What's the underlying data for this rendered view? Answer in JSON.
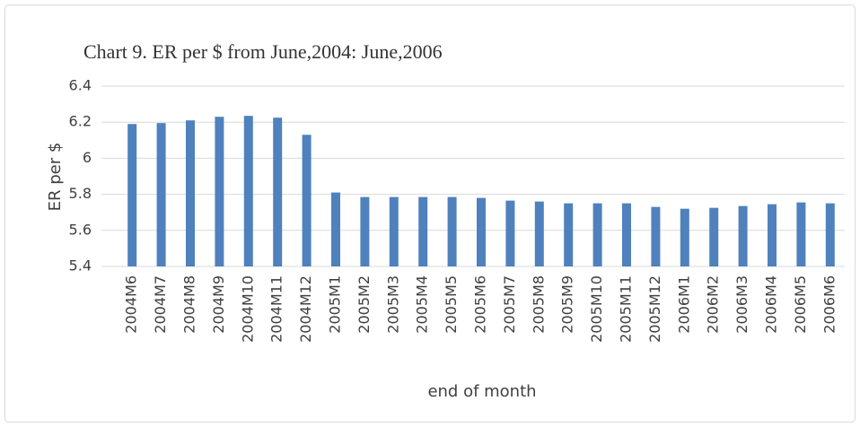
{
  "chart_data": {
    "type": "bar",
    "title": "Chart 9. ER per $ from June,2004: June,2006",
    "y_label": "ER per $",
    "x_label": "end of month",
    "categories": [
      "2004M6",
      "2004M7",
      "2004M8",
      "2004M9",
      "2004M10",
      "2004M11",
      "2004M12",
      "2005M1",
      "2005M2",
      "2005M3",
      "2005M4",
      "2005M5",
      "2005M6",
      "2005M7",
      "2005M8",
      "2005M9",
      "2005M10",
      "2005M11",
      "2005M12",
      "2006M1",
      "2006M2",
      "2006M3",
      "2006M4",
      "2006M5",
      "2006M6"
    ],
    "values": [
      6.19,
      6.195,
      6.21,
      6.23,
      6.235,
      6.225,
      6.13,
      5.81,
      5.785,
      5.785,
      5.785,
      5.785,
      5.78,
      5.765,
      5.76,
      5.75,
      5.75,
      5.75,
      5.73,
      5.72,
      5.725,
      5.735,
      5.745,
      5.755,
      5.75
    ],
    "color": "#4f81bd",
    "ylim": [
      5.4,
      6.4
    ],
    "yticks": [
      5.4,
      5.6,
      5.8,
      6,
      6.2,
      6.4
    ],
    "grid": true
  }
}
